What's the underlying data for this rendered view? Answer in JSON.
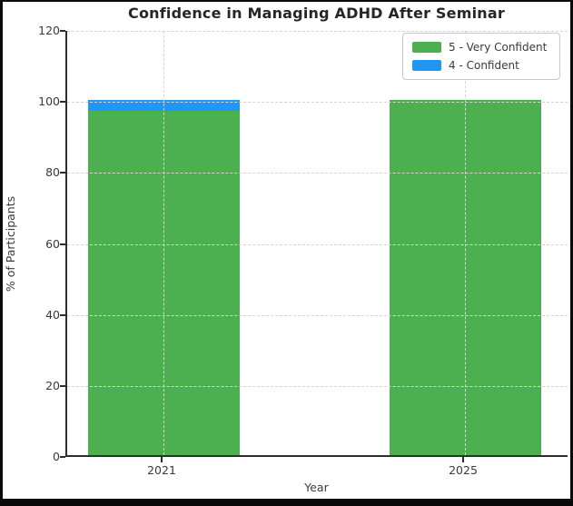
{
  "chart_data": {
    "type": "bar",
    "stacked": true,
    "title": "Confidence in Managing ADHD After Seminar",
    "xlabel": "Year",
    "ylabel": "% of Participants",
    "categories": [
      "2021",
      "2025"
    ],
    "series": [
      {
        "name": "5 - Very Confident",
        "color": "#4caf50",
        "values": [
          97,
          100
        ]
      },
      {
        "name": "4 - Confident",
        "color": "#2196f3",
        "values": [
          3,
          0
        ]
      }
    ],
    "ylim": [
      0,
      120
    ],
    "yticks": [
      0,
      20,
      40,
      60,
      80,
      100,
      120
    ],
    "grid": "dashed",
    "legend_position": "upper right"
  }
}
